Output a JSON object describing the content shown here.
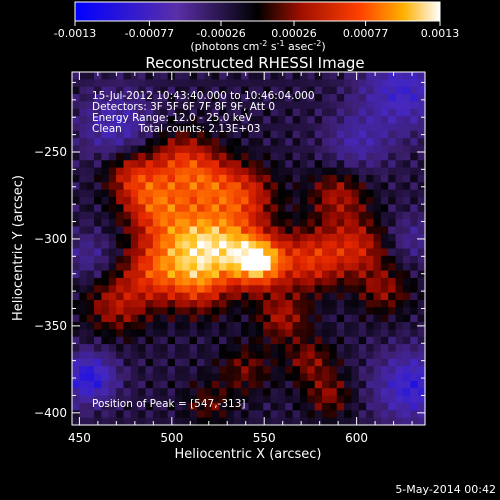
{
  "chart_data": {
    "type": "heatmap",
    "title": "Reconstructed RHESSI Image",
    "xlabel": "Heliocentric X (arcsec)",
    "ylabel": "Heliocentric Y (arcsec)",
    "xlim": [
      446,
      637
    ],
    "ylim": [
      -407,
      -204
    ],
    "x_ticks": [
      450,
      500,
      550,
      600
    ],
    "y_ticks": [
      -250,
      -300,
      -350,
      -400
    ],
    "colorbar": {
      "range": [
        -0.0013,
        0.0013
      ],
      "tick_labels": [
        "-0.0013",
        "-0.00077",
        "-0.00026",
        "0.00026",
        "0.00077",
        "0.0013"
      ],
      "units_label_parts": [
        "(photons cm",
        "-2",
        " s",
        "-1",
        " asec",
        "-2",
        ")"
      ]
    },
    "annotations": [
      "15-Jul-2012 10:43:40.000 to 10:46:04.000",
      "Detectors: 3F 5F 6F 7F 8F 9F, Att 0",
      "Energy Range: 12.0 - 25.0 keV",
      "Clean     Total counts: 2.13E+03"
    ],
    "peak_label": "Position of Peak = [547,-313]",
    "peak": [
      547,
      -313
    ],
    "footer_date": "5-May-2014 00:42",
    "sources": [
      {
        "x": 547,
        "y": -313,
        "amp": 0.0013,
        "sigma": 10
      },
      {
        "x": 528,
        "y": -303,
        "amp": 0.0009,
        "sigma": 14
      },
      {
        "x": 505,
        "y": -300,
        "amp": 0.0008,
        "sigma": 15
      },
      {
        "x": 490,
        "y": -278,
        "amp": 0.0007,
        "sigma": 12
      },
      {
        "x": 478,
        "y": -262,
        "amp": 0.00055,
        "sigma": 10
      },
      {
        "x": 505,
        "y": -255,
        "amp": 0.0006,
        "sigma": 12
      },
      {
        "x": 520,
        "y": -268,
        "amp": 0.0006,
        "sigma": 12
      },
      {
        "x": 540,
        "y": -275,
        "amp": 0.0006,
        "sigma": 12
      },
      {
        "x": 515,
        "y": -325,
        "amp": 0.0007,
        "sigma": 12
      },
      {
        "x": 490,
        "y": -320,
        "amp": 0.0006,
        "sigma": 12
      },
      {
        "x": 470,
        "y": -338,
        "amp": 0.0005,
        "sigma": 12
      },
      {
        "x": 575,
        "y": -312,
        "amp": 0.0007,
        "sigma": 12
      },
      {
        "x": 600,
        "y": -305,
        "amp": 0.0006,
        "sigma": 12
      },
      {
        "x": 590,
        "y": -275,
        "amp": 0.0005,
        "sigma": 11
      },
      {
        "x": 615,
        "y": -330,
        "amp": 0.0004,
        "sigma": 10
      },
      {
        "x": 560,
        "y": -345,
        "amp": 0.0005,
        "sigma": 10
      },
      {
        "x": 575,
        "y": -370,
        "amp": 0.0004,
        "sigma": 9
      },
      {
        "x": 585,
        "y": -390,
        "amp": 0.0004,
        "sigma": 9
      },
      {
        "x": 540,
        "y": -375,
        "amp": 0.00035,
        "sigma": 10
      },
      {
        "x": 520,
        "y": -395,
        "amp": 0.0003,
        "sigma": 9
      },
      {
        "x": 470,
        "y": -235,
        "amp": -0.0005,
        "sigma": 14
      },
      {
        "x": 625,
        "y": -215,
        "amp": -0.0006,
        "sigma": 16
      },
      {
        "x": 630,
        "y": -385,
        "amp": -0.0007,
        "sigma": 14
      },
      {
        "x": 455,
        "y": -380,
        "amp": -0.0008,
        "sigma": 10
      },
      {
        "x": 600,
        "y": -245,
        "amp": -0.0004,
        "sigma": 12
      },
      {
        "x": 455,
        "y": -310,
        "amp": -0.0003,
        "sigma": 10
      },
      {
        "x": 630,
        "y": -300,
        "amp": -0.0003,
        "sigma": 10
      }
    ]
  }
}
